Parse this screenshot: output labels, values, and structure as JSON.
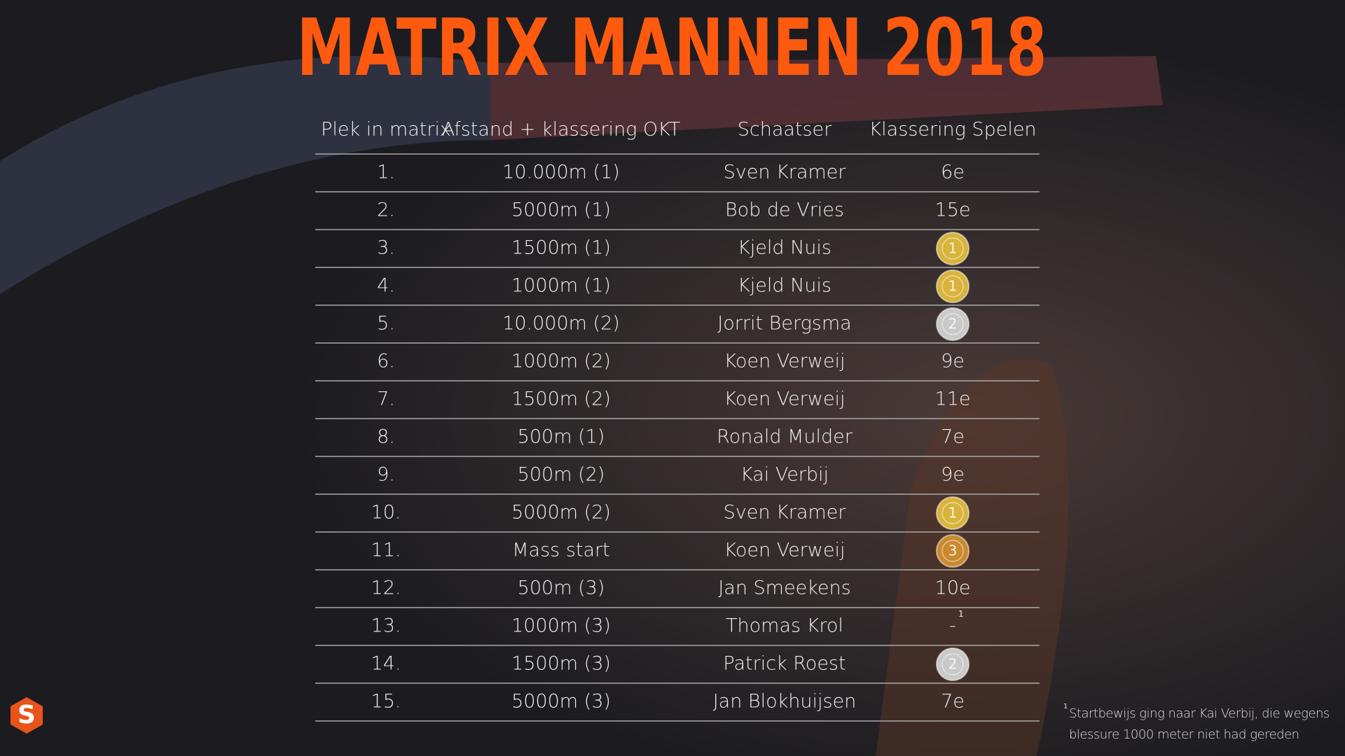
{
  "header": {
    "title": "MATRIX MANNEN 2018"
  },
  "table": {
    "columns": [
      "Plek in matrix",
      "Afstand + klassering OKT",
      "Schaatser",
      "Klassering Spelen"
    ],
    "rows": [
      [
        "1.",
        "10.000m (1)",
        "Sven Kramer",
        "6e"
      ],
      [
        "2.",
        "5000m (1)",
        "Bob de Vries",
        "15e"
      ],
      [
        "3.",
        "1500m (1)",
        "Kjeld Nuis",
        {
          "medal": "1",
          "color": "#d8b43c"
        }
      ],
      [
        "4.",
        "1000m (1)",
        "Kjeld Nuis",
        {
          "medal": "1",
          "color": "#d8b43c"
        }
      ],
      [
        "5.",
        "10.000m (2)",
        "Jorrit Bergsma",
        {
          "medal": "2",
          "color": "#c9c9c9"
        }
      ],
      [
        "6.",
        "1000m (2)",
        "Koen Verweij",
        "9e"
      ],
      [
        "7.",
        "1500m (2)",
        "Koen Verweij",
        "11e"
      ],
      [
        "8.",
        "500m (1)",
        "Ronald Mulder",
        "7e"
      ],
      [
        "9.",
        "500m (2)",
        "Kai Verbij",
        "9e"
      ],
      [
        "10.",
        "5000m (2)",
        "Sven Kramer",
        {
          "medal": "1",
          "color": "#d8b43c"
        }
      ],
      [
        "11.",
        "Mass start",
        "Koen Verweij",
        {
          "medal": "3",
          "color": "#c98a2e"
        }
      ],
      [
        "12.",
        "500m (3)",
        "Jan Smeekens",
        "10e"
      ],
      [
        "13.",
        "1000m (3)",
        "Thomas Krol",
        {
          "text": "-",
          "note": "1"
        }
      ],
      [
        "14.",
        "1500m (3)",
        "Patrick Roest",
        {
          "medal": "2",
          "color": "#c9c9c9"
        }
      ],
      [
        "15.",
        "5000m (3)",
        "Jan Blokhuijsen",
        "7e"
      ]
    ]
  },
  "footnote": {
    "mark": "1",
    "text": "Startbewijs ging naar Kai Verbij, die wegens blessure 1000 meter niet had gereden"
  },
  "logo": {
    "text": "S"
  }
}
